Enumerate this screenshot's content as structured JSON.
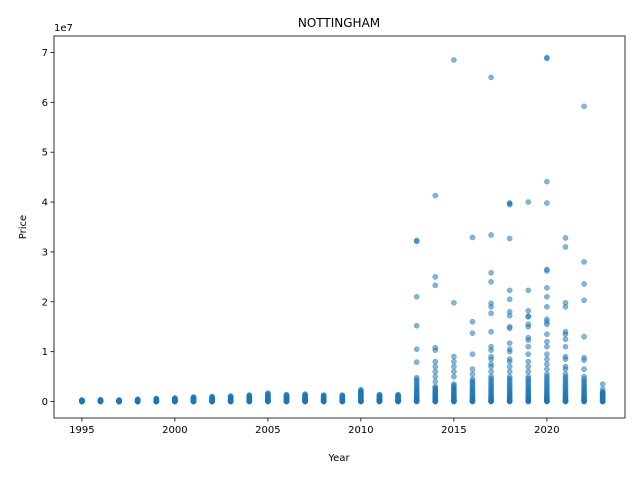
{
  "chart_data": {
    "type": "scatter",
    "title": "NOTTINGHAM",
    "xlabel": "Year",
    "ylabel": "Price",
    "y_offset_label": "1e7",
    "xlim": [
      1993.5,
      2024.2
    ],
    "ylim": [
      -3300000,
      73300000
    ],
    "x_ticks": [
      1995,
      2000,
      2005,
      2010,
      2015,
      2020
    ],
    "x_tick_labels": [
      "1995",
      "2000",
      "2005",
      "2010",
      "2015",
      "2020"
    ],
    "y_ticks": [
      0,
      10000000,
      20000000,
      30000000,
      40000000,
      50000000,
      60000000,
      70000000
    ],
    "y_tick_labels": [
      "0",
      "1",
      "2",
      "3",
      "4",
      "5",
      "6",
      "7"
    ],
    "grid": false,
    "legend": "none",
    "point_color": "#1f77b4",
    "point_opacity": 0.55,
    "series": [
      {
        "max_by_year": [
          {
            "x": 1995,
            "y": 300000
          },
          {
            "x": 1996,
            "y": 350000
          },
          {
            "x": 1997,
            "y": 300000
          },
          {
            "x": 1998,
            "y": 450000
          },
          {
            "x": 1999,
            "y": 600000
          },
          {
            "x": 2000,
            "y": 700000
          },
          {
            "x": 2001,
            "y": 900000
          },
          {
            "x": 2002,
            "y": 1000000
          },
          {
            "x": 2003,
            "y": 1100000
          },
          {
            "x": 2004,
            "y": 1300000
          },
          {
            "x": 2005,
            "y": 1700000
          },
          {
            "x": 2006,
            "y": 1400000
          },
          {
            "x": 2007,
            "y": 1500000
          },
          {
            "x": 2008,
            "y": 1300000
          },
          {
            "x": 2009,
            "y": 1300000
          },
          {
            "x": 2010,
            "y": 2400000
          },
          {
            "x": 2011,
            "y": 1400000
          },
          {
            "x": 2012,
            "y": 1400000
          },
          {
            "x": 2013,
            "y": 4800000
          },
          {
            "x": 2014,
            "y": 3000000
          },
          {
            "x": 2015,
            "y": 3500000
          },
          {
            "x": 2016,
            "y": 4500000
          },
          {
            "x": 2017,
            "y": 5000000
          },
          {
            "x": 2018,
            "y": 5000000
          },
          {
            "x": 2019,
            "y": 5000000
          },
          {
            "x": 2020,
            "y": 5000000
          },
          {
            "x": 2021,
            "y": 5000000
          },
          {
            "x": 2022,
            "y": 4500000
          },
          {
            "x": 2023,
            "y": 2000000
          }
        ],
        "outliers": [
          {
            "x": 2013,
            "y": 32300000
          },
          {
            "x": 2013,
            "y": 32100000
          },
          {
            "x": 2013,
            "y": 21000000
          },
          {
            "x": 2013,
            "y": 15200000
          },
          {
            "x": 2013,
            "y": 10500000
          },
          {
            "x": 2013,
            "y": 7900000
          },
          {
            "x": 2014,
            "y": 41300000
          },
          {
            "x": 2014,
            "y": 25000000
          },
          {
            "x": 2014,
            "y": 23300000
          },
          {
            "x": 2014,
            "y": 10800000
          },
          {
            "x": 2014,
            "y": 10300000
          },
          {
            "x": 2014,
            "y": 8000000
          },
          {
            "x": 2014,
            "y": 7000000
          },
          {
            "x": 2014,
            "y": 6000000
          },
          {
            "x": 2014,
            "y": 5000000
          },
          {
            "x": 2014,
            "y": 4000000
          },
          {
            "x": 2015,
            "y": 68500000
          },
          {
            "x": 2015,
            "y": 19800000
          },
          {
            "x": 2015,
            "y": 9000000
          },
          {
            "x": 2015,
            "y": 8000000
          },
          {
            "x": 2015,
            "y": 7000000
          },
          {
            "x": 2015,
            "y": 6000000
          },
          {
            "x": 2015,
            "y": 5000000
          },
          {
            "x": 2016,
            "y": 32900000
          },
          {
            "x": 2016,
            "y": 16000000
          },
          {
            "x": 2016,
            "y": 13700000
          },
          {
            "x": 2016,
            "y": 9500000
          },
          {
            "x": 2016,
            "y": 6500000
          },
          {
            "x": 2016,
            "y": 5500000
          },
          {
            "x": 2017,
            "y": 65000000
          },
          {
            "x": 2017,
            "y": 33400000
          },
          {
            "x": 2017,
            "y": 25800000
          },
          {
            "x": 2017,
            "y": 24000000
          },
          {
            "x": 2017,
            "y": 19700000
          },
          {
            "x": 2017,
            "y": 19000000
          },
          {
            "x": 2017,
            "y": 17700000
          },
          {
            "x": 2017,
            "y": 14000000
          },
          {
            "x": 2017,
            "y": 11000000
          },
          {
            "x": 2017,
            "y": 10300000
          },
          {
            "x": 2017,
            "y": 9000000
          },
          {
            "x": 2017,
            "y": 8500000
          },
          {
            "x": 2017,
            "y": 7500000
          },
          {
            "x": 2017,
            "y": 7000000
          },
          {
            "x": 2017,
            "y": 6000000
          },
          {
            "x": 2018,
            "y": 39800000
          },
          {
            "x": 2018,
            "y": 39700000
          },
          {
            "x": 2018,
            "y": 39500000
          },
          {
            "x": 2018,
            "y": 32700000
          },
          {
            "x": 2018,
            "y": 22300000
          },
          {
            "x": 2018,
            "y": 20500000
          },
          {
            "x": 2018,
            "y": 18000000
          },
          {
            "x": 2018,
            "y": 17200000
          },
          {
            "x": 2018,
            "y": 15000000
          },
          {
            "x": 2018,
            "y": 14700000
          },
          {
            "x": 2018,
            "y": 11700000
          },
          {
            "x": 2018,
            "y": 10500000
          },
          {
            "x": 2018,
            "y": 10000000
          },
          {
            "x": 2018,
            "y": 8500000
          },
          {
            "x": 2018,
            "y": 8000000
          },
          {
            "x": 2018,
            "y": 7000000
          },
          {
            "x": 2018,
            "y": 6000000
          },
          {
            "x": 2019,
            "y": 40000000
          },
          {
            "x": 2019,
            "y": 22300000
          },
          {
            "x": 2019,
            "y": 18200000
          },
          {
            "x": 2019,
            "y": 17100000
          },
          {
            "x": 2019,
            "y": 17000000
          },
          {
            "x": 2019,
            "y": 15500000
          },
          {
            "x": 2019,
            "y": 15000000
          },
          {
            "x": 2019,
            "y": 12800000
          },
          {
            "x": 2019,
            "y": 12300000
          },
          {
            "x": 2019,
            "y": 11000000
          },
          {
            "x": 2019,
            "y": 9500000
          },
          {
            "x": 2019,
            "y": 8000000
          },
          {
            "x": 2019,
            "y": 7000000
          },
          {
            "x": 2019,
            "y": 6000000
          },
          {
            "x": 2020,
            "y": 69000000
          },
          {
            "x": 2020,
            "y": 68800000
          },
          {
            "x": 2020,
            "y": 44100000
          },
          {
            "x": 2020,
            "y": 39800000
          },
          {
            "x": 2020,
            "y": 26500000
          },
          {
            "x": 2020,
            "y": 26200000
          },
          {
            "x": 2020,
            "y": 22800000
          },
          {
            "x": 2020,
            "y": 21000000
          },
          {
            "x": 2020,
            "y": 19000000
          },
          {
            "x": 2020,
            "y": 16500000
          },
          {
            "x": 2020,
            "y": 16000000
          },
          {
            "x": 2020,
            "y": 15500000
          },
          {
            "x": 2020,
            "y": 13500000
          },
          {
            "x": 2020,
            "y": 12000000
          },
          {
            "x": 2020,
            "y": 11000000
          },
          {
            "x": 2020,
            "y": 9500000
          },
          {
            "x": 2020,
            "y": 8500000
          },
          {
            "x": 2020,
            "y": 7500000
          },
          {
            "x": 2020,
            "y": 6500000
          },
          {
            "x": 2020,
            "y": 5500000
          },
          {
            "x": 2021,
            "y": 32800000
          },
          {
            "x": 2021,
            "y": 31000000
          },
          {
            "x": 2021,
            "y": 19800000
          },
          {
            "x": 2021,
            "y": 19000000
          },
          {
            "x": 2021,
            "y": 14000000
          },
          {
            "x": 2021,
            "y": 13500000
          },
          {
            "x": 2021,
            "y": 12500000
          },
          {
            "x": 2021,
            "y": 11000000
          },
          {
            "x": 2021,
            "y": 9000000
          },
          {
            "x": 2021,
            "y": 8500000
          },
          {
            "x": 2021,
            "y": 7000000
          },
          {
            "x": 2021,
            "y": 6500000
          },
          {
            "x": 2021,
            "y": 5500000
          },
          {
            "x": 2022,
            "y": 59200000
          },
          {
            "x": 2022,
            "y": 28000000
          },
          {
            "x": 2022,
            "y": 23600000
          },
          {
            "x": 2022,
            "y": 20300000
          },
          {
            "x": 2022,
            "y": 13000000
          },
          {
            "x": 2022,
            "y": 8800000
          },
          {
            "x": 2022,
            "y": 8300000
          },
          {
            "x": 2022,
            "y": 6500000
          },
          {
            "x": 2022,
            "y": 5000000
          },
          {
            "x": 2023,
            "y": 3500000
          },
          {
            "x": 2023,
            "y": 2500000
          }
        ]
      }
    ]
  }
}
